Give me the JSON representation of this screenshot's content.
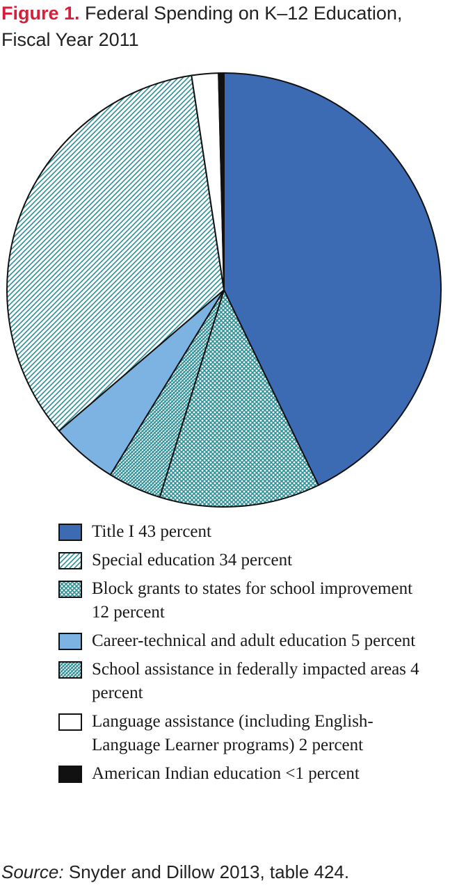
{
  "figure_label": "Figure 1.",
  "title": "Federal Spending on K–12 Education, Fiscal Year 2011",
  "source": {
    "label": "Source:",
    "text": "Snyder and Dillow 2013, table 424."
  },
  "chart_data": {
    "type": "pie",
    "title": "Federal Spending on K–12 Education, Fiscal Year 2011",
    "unit": "percent",
    "legend_position": "bottom",
    "slices": [
      {
        "label": "Title I 43 percent",
        "value": 43,
        "color": "#3d6bb3",
        "pattern": "solid"
      },
      {
        "label": "Block grants to states for school improvement 12 percent",
        "value": 12,
        "color": "#2b8f97",
        "pattern": "crosshatch"
      },
      {
        "label": "School assistance in federally impacted areas 4 percent",
        "value": 4,
        "color": "#2b8f97",
        "pattern": "diagonal-dense"
      },
      {
        "label": "Career-technical and adult education 5 percent",
        "value": 5,
        "color": "#7db3e3",
        "pattern": "solid"
      },
      {
        "label": "Special education 34 percent",
        "value": 34,
        "color": "#2b8f97",
        "pattern": "diagonal"
      },
      {
        "label": "Language assistance (including English-Language Learner programs) 2 percent",
        "value": 2,
        "color": "#ffffff",
        "pattern": "solid"
      },
      {
        "label": "American Indian education <1 percent",
        "value": 0.4,
        "color": "#111111",
        "pattern": "solid"
      }
    ]
  },
  "legend": [
    {
      "label": "Title I 43 percent",
      "color": "#3d6bb3",
      "pattern": "solid"
    },
    {
      "label": "Special education 34 percent",
      "color": "#2b8f97",
      "pattern": "diagonal"
    },
    {
      "label": "Block grants to states for school improvement 12 percent",
      "color": "#2b8f97",
      "pattern": "crosshatch"
    },
    {
      "label": "Career-technical and adult education 5 percent",
      "color": "#7db3e3",
      "pattern": "solid"
    },
    {
      "label": "School assistance in federally impacted areas 4 percent",
      "color": "#2b8f97",
      "pattern": "diagonal-dense"
    },
    {
      "label": "Language assistance (including English-Language Learner programs) 2 percent",
      "color": "#ffffff",
      "pattern": "solid"
    },
    {
      "label": "American Indian education <1 percent",
      "color": "#111111",
      "pattern": "solid"
    }
  ]
}
